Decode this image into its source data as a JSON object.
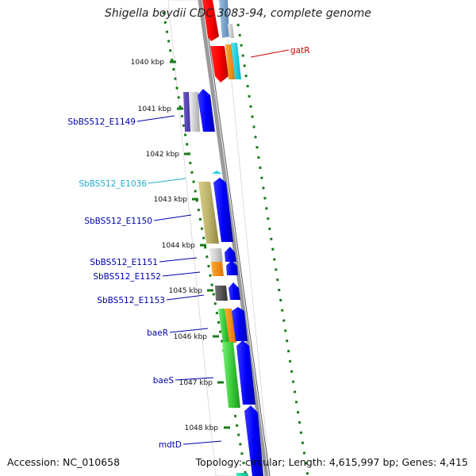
{
  "title": "Shigella boydii CDC 3083-94, complete genome",
  "footer": {
    "accession": "Accession: NC_010658",
    "topology": "Topology: circular; Length: 4,615,997 bp; Genes: 4,415"
  },
  "colors": {
    "backbone": "#9a9a9a",
    "tick_marks": "#1a7a1a",
    "label_default": "#0000aa",
    "label_highlight_cyan": "#22aacc",
    "label_highlight_red": "#cc0000"
  },
  "ticks": [
    "1040 kbp",
    "1041 kbp",
    "1042 kbp",
    "1043 kbp",
    "1044 kbp",
    "1045 kbp",
    "1046 kbp",
    "1047 kbp",
    "1048 kbp"
  ],
  "gene_labels": [
    {
      "name": "gatR",
      "color": "#cc0000"
    },
    {
      "name": "SbBS512_E1149",
      "color": "#0000aa"
    },
    {
      "name": "SbBS512_E1036",
      "color": "#22aacc"
    },
    {
      "name": "SbBS512_E1150",
      "color": "#0000aa"
    },
    {
      "name": "SbBS512_E1151",
      "color": "#0000aa"
    },
    {
      "name": "SbBS512_E1152",
      "color": "#0000aa"
    },
    {
      "name": "SbBS512_E1153",
      "color": "#0000aa"
    },
    {
      "name": "baeR",
      "color": "#0000aa"
    },
    {
      "name": "baeS",
      "color": "#0000aa"
    },
    {
      "name": "mdtD",
      "color": "#0000aa"
    }
  ]
}
